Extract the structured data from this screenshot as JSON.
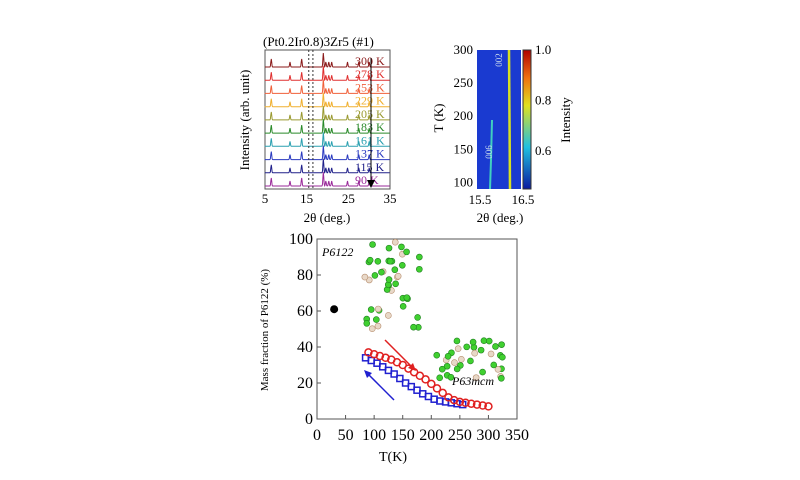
{
  "chart_data": [
    {
      "type": "line",
      "title": "(Pt0.2Ir0.8)3Zr5 (#1)",
      "xlabel": "2θ (deg.)",
      "ylabel": "Intensity (arb. unit)",
      "xlim": [
        5,
        35
      ],
      "xticks": [
        "5",
        "15",
        "25",
        "35"
      ],
      "series": [
        {
          "name": "300 K",
          "color": "#8b1a1a"
        },
        {
          "name": "278 K",
          "color": "#e03030"
        },
        {
          "name": "253 K",
          "color": "#f0603a"
        },
        {
          "name": "229 K",
          "color": "#f0b030"
        },
        {
          "name": "205 K",
          "color": "#9a9a30"
        },
        {
          "name": "183 K",
          "color": "#2a8a2a"
        },
        {
          "name": "161 K",
          "color": "#2aa0b0"
        },
        {
          "name": "137 K",
          "color": "#2a3ac0"
        },
        {
          "name": "115 K",
          "color": "#20208a"
        },
        {
          "name": "90 K",
          "color": "#9a2a9a"
        }
      ],
      "peaks": [
        6.5,
        11,
        13.8,
        19,
        19.6,
        20.3,
        21,
        24.8,
        27.5,
        30
      ],
      "dashed_lines": [
        15.5,
        16.5
      ]
    },
    {
      "type": "heatmap",
      "xlabel": "2θ (deg.)",
      "ylabel": "T (K)",
      "xlim": [
        15.5,
        16.5
      ],
      "ylim": [
        90,
        300
      ],
      "xticks": [
        "15.5",
        "16.5"
      ],
      "yticks": [
        "100",
        "150",
        "200",
        "250",
        "300"
      ],
      "colorbar": {
        "label": "Intensity",
        "ticks": [
          "0.6",
          "0.8",
          "1.0"
        ],
        "range": [
          0.45,
          1.0
        ]
      },
      "annotations": [
        "006",
        "002"
      ]
    },
    {
      "type": "scatter",
      "xlabel": "T(K)",
      "ylabel": "Mass fraction of P6122 (%)",
      "xlim": [
        0,
        350
      ],
      "ylim": [
        0,
        100
      ],
      "xticks": [
        "0",
        "50",
        "100",
        "150",
        "200",
        "250",
        "300",
        "350"
      ],
      "yticks": [
        "0",
        "20",
        "40",
        "60",
        "80",
        "100"
      ],
      "annotations": [
        "P6122",
        "P63mcm"
      ],
      "series": [
        {
          "color": "#e02020",
          "marker": "open-circle",
          "x": [
            90,
            100,
            110,
            120,
            130,
            140,
            150,
            160,
            170,
            180,
            190,
            200,
            210,
            220,
            230,
            240,
            250,
            260,
            270,
            280,
            290,
            300
          ],
          "y": [
            37,
            36,
            35,
            34,
            33,
            31.5,
            30,
            28,
            26,
            24,
            22,
            19.5,
            17,
            14.5,
            12,
            10.5,
            9.5,
            9,
            8.5,
            8,
            7.5,
            7
          ]
        },
        {
          "color": "#2020d0",
          "marker": "open-square",
          "x": [
            85,
            95,
            105,
            115,
            125,
            135,
            145,
            155,
            165,
            175,
            185,
            195,
            205,
            215,
            225,
            235,
            245,
            255
          ],
          "y": [
            34,
            32.5,
            31,
            29,
            27,
            25,
            22.5,
            20,
            18,
            16,
            14,
            12.5,
            11,
            10,
            9.5,
            9,
            8.5,
            8
          ]
        },
        {
          "color": "#000000",
          "marker": "filled-circle",
          "x": [
            30
          ],
          "y": [
            61
          ]
        }
      ]
    }
  ]
}
